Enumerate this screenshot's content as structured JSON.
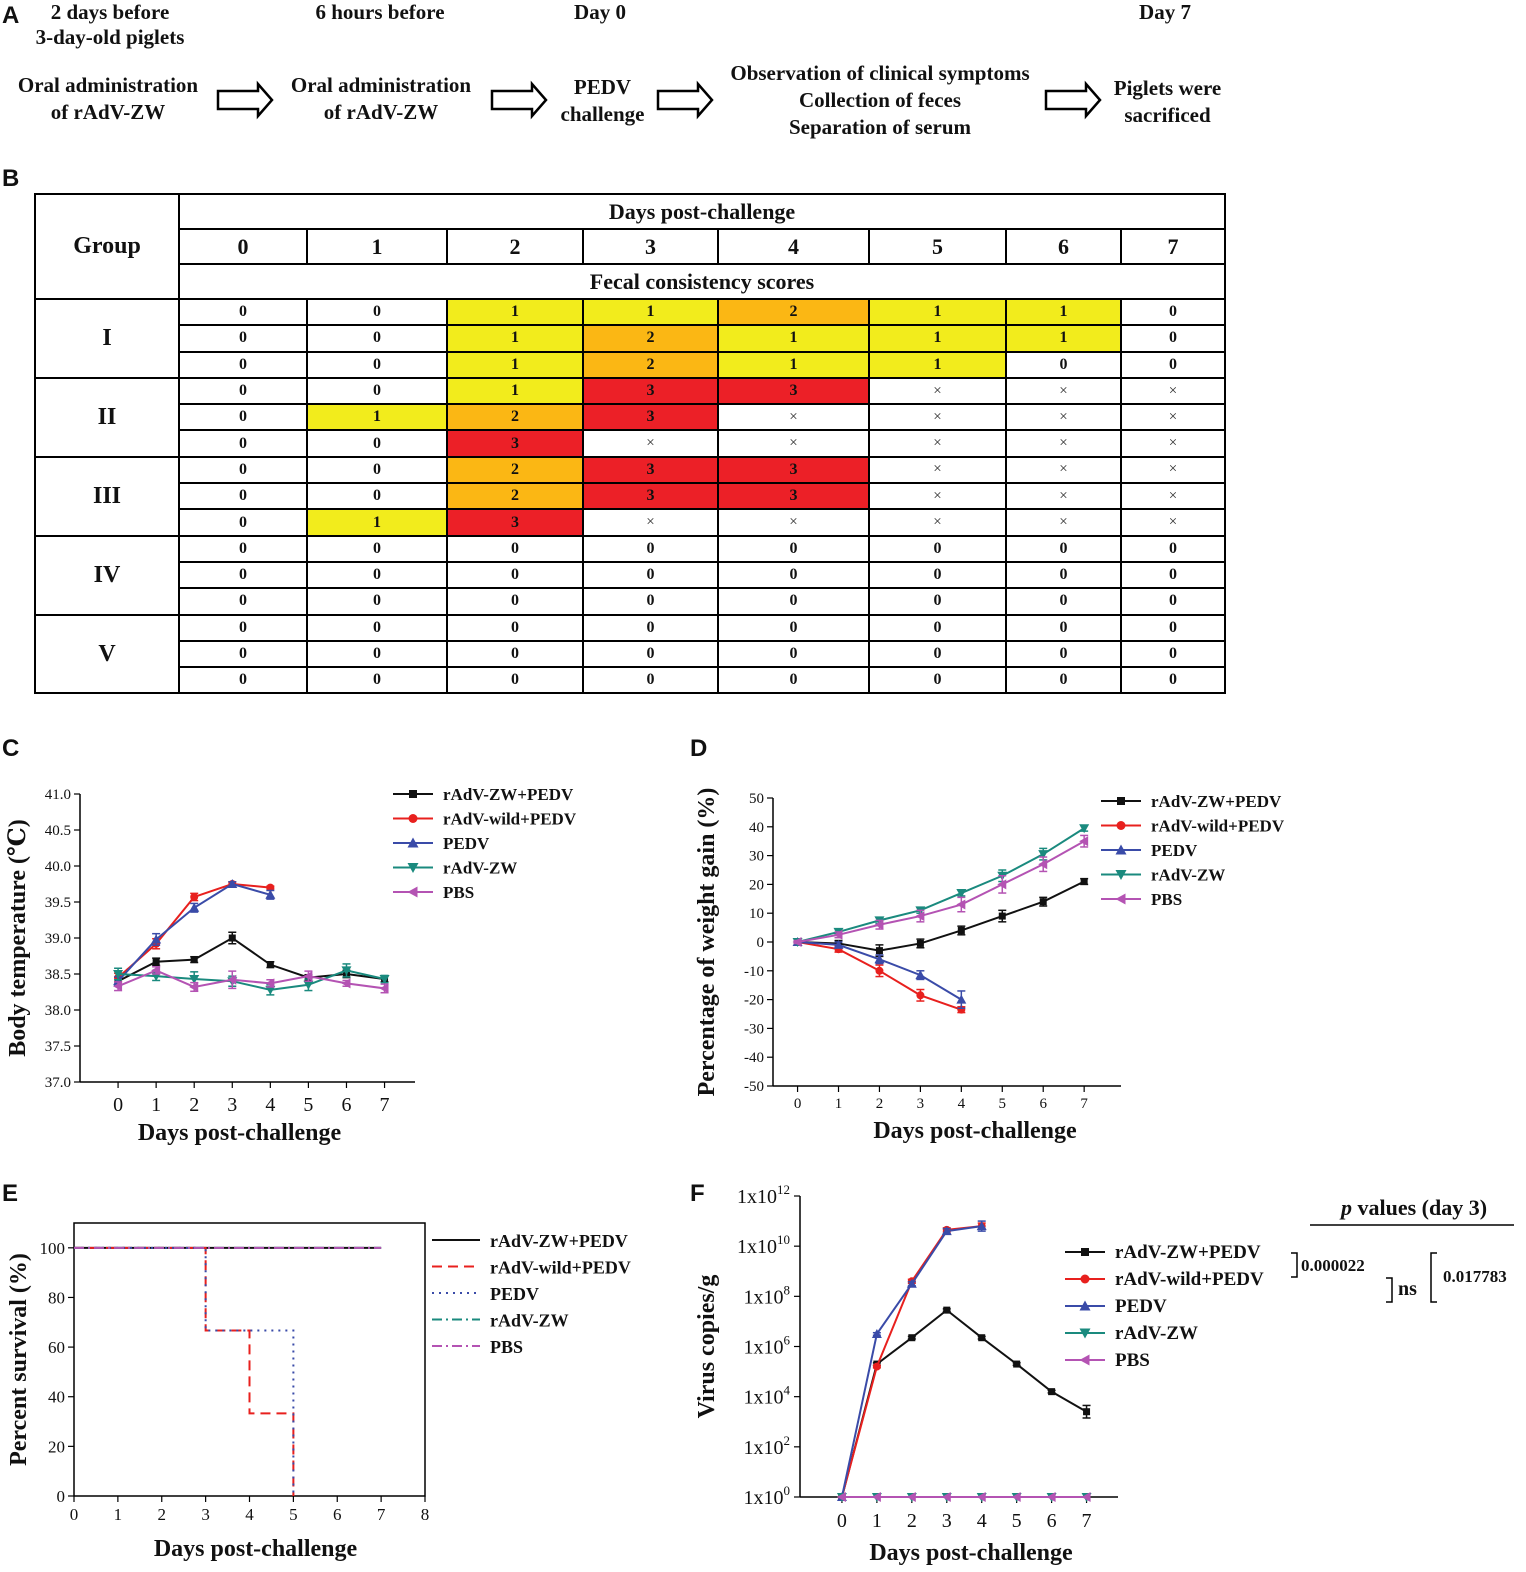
{
  "panel_letters": {
    "a": "A",
    "b": "B",
    "c": "C",
    "d": "D",
    "e": "E",
    "f": "F"
  },
  "timeline": {
    "head_1a": "2 days before",
    "head_1b": "3-day-old piglets",
    "head_2": "6 hours before",
    "head_3": "Day 0",
    "head_4": "Day 7",
    "step_1a": "Oral administration",
    "step_1b": "of rAdV-ZW",
    "step_2a": "Oral administration",
    "step_2b": "of rAdV-ZW",
    "step_3a": "PEDV",
    "step_3b": "challenge",
    "step_4a": "Observation of clinical symptoms",
    "step_4b": "Collection of feces",
    "step_4c": "Separation of serum",
    "step_5a": "Piglets were",
    "step_5b": "sacrificed"
  },
  "table": {
    "group_header": "Group",
    "days_header": "Days post-challenge",
    "days": [
      "0",
      "1",
      "2",
      "3",
      "4",
      "5",
      "6",
      "7"
    ],
    "scores_header": "Fecal consistency scores",
    "groups": [
      {
        "label": "I",
        "rows": [
          [
            "0",
            "0",
            "1",
            "1",
            "2",
            "1",
            "1",
            "0"
          ],
          [
            "0",
            "0",
            "1",
            "2",
            "1",
            "1",
            "1",
            "0"
          ],
          [
            "0",
            "0",
            "1",
            "2",
            "1",
            "1",
            "0",
            "0"
          ]
        ]
      },
      {
        "label": "II",
        "rows": [
          [
            "0",
            "0",
            "1",
            "3",
            "3",
            "×",
            "×",
            "×"
          ],
          [
            "0",
            "1",
            "2",
            "3",
            "×",
            "×",
            "×",
            "×"
          ],
          [
            "0",
            "0",
            "3",
            "×",
            "×",
            "×",
            "×",
            "×"
          ]
        ]
      },
      {
        "label": "III",
        "rows": [
          [
            "0",
            "0",
            "2",
            "3",
            "3",
            "×",
            "×",
            "×"
          ],
          [
            "0",
            "0",
            "2",
            "3",
            "3",
            "×",
            "×",
            "×"
          ],
          [
            "0",
            "1",
            "3",
            "×",
            "×",
            "×",
            "×",
            "×"
          ]
        ]
      },
      {
        "label": "IV",
        "rows": [
          [
            "0",
            "0",
            "0",
            "0",
            "0",
            "0",
            "0",
            "0"
          ],
          [
            "0",
            "0",
            "0",
            "0",
            "0",
            "0",
            "0",
            "0"
          ],
          [
            "0",
            "0",
            "0",
            "0",
            "0",
            "0",
            "0",
            "0"
          ]
        ]
      },
      {
        "label": "V",
        "rows": [
          [
            "0",
            "0",
            "0",
            "0",
            "0",
            "0",
            "0",
            "0"
          ],
          [
            "0",
            "0",
            "0",
            "0",
            "0",
            "0",
            "0",
            "0"
          ],
          [
            "0",
            "0",
            "0",
            "0",
            "0",
            "0",
            "0",
            "0"
          ]
        ]
      }
    ],
    "score_colors": {
      "0": "#ffffff",
      "1": "#f2ec1c",
      "2": "#fbb714",
      "3": "#ec2027",
      "×": "#ffffff"
    }
  },
  "colors": {
    "rAdV-ZW+PEDV": "#111111",
    "rAdV-wild+PEDV": "#e8201e",
    "PEDV": "#3a4ba8",
    "rAdV-ZW": "#1a8a7e",
    "PBS": "#b453b3"
  },
  "chart_data": [
    {
      "id": "C",
      "type": "line",
      "title": "",
      "xlabel": "Days post-challenge",
      "ylabel": "Body temperature (℃)",
      "xlim": [
        -1,
        7.8
      ],
      "ylim": [
        37.0,
        41.0
      ],
      "xticks": [
        0,
        1,
        2,
        3,
        4,
        5,
        6,
        7
      ],
      "yticks": [
        37.0,
        37.5,
        38.0,
        38.5,
        39.0,
        39.5,
        40.0,
        40.5,
        41.0
      ],
      "ytick_labels": [
        "37.0",
        "37.5",
        "38.0",
        "38.5",
        "39.0",
        "39.5",
        "40.0",
        "40.5",
        "41.0"
      ],
      "series": [
        {
          "name": "rAdV-ZW+PEDV",
          "marker": "square",
          "x": [
            0,
            1,
            2,
            3,
            4,
            5,
            6,
            7
          ],
          "values": [
            38.4,
            38.67,
            38.7,
            39.0,
            38.63,
            38.45,
            38.5,
            38.43
          ],
          "err": [
            0.05,
            0.05,
            0.04,
            0.08,
            0.04,
            0.04,
            0.05,
            0.04
          ]
        },
        {
          "name": "rAdV-wild+PEDV",
          "marker": "circle",
          "x": [
            0,
            1,
            2,
            3,
            4
          ],
          "values": [
            38.45,
            38.92,
            39.57,
            39.75,
            39.7
          ],
          "err": [
            0.06,
            0.07,
            0.05,
            0.03,
            0.02
          ]
        },
        {
          "name": "PEDV",
          "marker": "triangle-up",
          "x": [
            0,
            1,
            2,
            3,
            4
          ],
          "values": [
            38.4,
            38.98,
            39.42,
            39.75,
            39.6
          ],
          "err": [
            0.06,
            0.08,
            0.06,
            0.03,
            0.06
          ]
        },
        {
          "name": "rAdV-ZW",
          "marker": "triangle-down",
          "x": [
            0,
            1,
            2,
            3,
            4,
            5,
            6,
            7
          ],
          "values": [
            38.5,
            38.47,
            38.43,
            38.4,
            38.28,
            38.35,
            38.55,
            38.43
          ],
          "err": [
            0.08,
            0.06,
            0.1,
            0.07,
            0.07,
            0.08,
            0.09,
            0.05
          ]
        },
        {
          "name": "PBS",
          "marker": "triangle-left",
          "x": [
            0,
            1,
            2,
            3,
            4,
            5,
            6,
            7
          ],
          "values": [
            38.33,
            38.55,
            38.32,
            38.42,
            38.37,
            38.47,
            38.37,
            38.3
          ],
          "err": [
            0.06,
            0.05,
            0.06,
            0.12,
            0.05,
            0.07,
            0.04,
            0.06
          ]
        }
      ],
      "legend": [
        "rAdV-ZW+PEDV",
        "rAdV-wild+PEDV",
        "PEDV",
        "rAdV-ZW",
        "PBS"
      ]
    },
    {
      "id": "D",
      "type": "line",
      "title": "",
      "xlabel": "Days post-challenge",
      "ylabel": "Percentage of weight gain (%)",
      "xlim": [
        -0.6,
        7.9
      ],
      "ylim": [
        -50,
        50
      ],
      "xticks": [
        0,
        1,
        2,
        3,
        4,
        5,
        6,
        7
      ],
      "yticks": [
        -50,
        -40,
        -30,
        -20,
        -10,
        0,
        10,
        20,
        30,
        40,
        50
      ],
      "ytick_labels": [
        "-50",
        "-40",
        "-30",
        "-20",
        "-10",
        "0",
        "10",
        "20",
        "30",
        "40",
        "50"
      ],
      "series": [
        {
          "name": "rAdV-ZW+PEDV",
          "marker": "square",
          "x": [
            0,
            1,
            2,
            3,
            4,
            5,
            6,
            7
          ],
          "values": [
            0,
            -0.5,
            -3,
            -0.5,
            4,
            9,
            14,
            21
          ],
          "err": [
            0.5,
            1,
            2,
            1.5,
            1.5,
            2,
            1.5,
            1
          ]
        },
        {
          "name": "rAdV-wild+PEDV",
          "marker": "circle",
          "x": [
            0,
            1,
            2,
            3,
            4
          ],
          "values": [
            0,
            -2.5,
            -10,
            -18.5,
            -23.5
          ],
          "err": [
            0.5,
            1,
            2,
            2,
            1
          ]
        },
        {
          "name": "PEDV",
          "marker": "triangle-up",
          "x": [
            0,
            1,
            2,
            3,
            4
          ],
          "values": [
            0,
            -1,
            -6,
            -11.5,
            -20
          ],
          "err": [
            0.5,
            1,
            1.5,
            1.5,
            3
          ]
        },
        {
          "name": "rAdV-ZW",
          "marker": "triangle-down",
          "x": [
            0,
            1,
            2,
            3,
            4,
            5,
            6,
            7
          ],
          "values": [
            0,
            3.5,
            7.5,
            11,
            17,
            23,
            30.5,
            39.5
          ],
          "err": [
            0.5,
            0.8,
            1,
            1,
            1,
            2,
            2,
            1
          ]
        },
        {
          "name": "PBS",
          "marker": "triangle-left",
          "x": [
            0,
            1,
            2,
            3,
            4,
            5,
            6,
            7
          ],
          "values": [
            0,
            2.5,
            6,
            9,
            13,
            20,
            27,
            35
          ],
          "err": [
            0.5,
            1,
            1.5,
            2,
            2.5,
            3,
            2.5,
            2
          ]
        }
      ],
      "legend": [
        "rAdV-ZW+PEDV",
        "rAdV-wild+PEDV",
        "PEDV",
        "rAdV-ZW",
        "PBS"
      ]
    },
    {
      "id": "E",
      "type": "line",
      "title": "",
      "xlabel": "Days post-challenge",
      "ylabel": "Percent survival (%)",
      "xlim": [
        0,
        8
      ],
      "ylim": [
        0,
        110
      ],
      "xticks": [
        0,
        1,
        2,
        3,
        4,
        5,
        6,
        7,
        8
      ],
      "yticks": [
        0,
        20,
        40,
        60,
        80,
        100
      ],
      "ytick_labels": [
        "0",
        "20",
        "40",
        "60",
        "80",
        "100"
      ],
      "series": [
        {
          "name": "rAdV-ZW+PEDV",
          "style": "solid",
          "x": [
            0,
            7
          ],
          "values": [
            100,
            100
          ]
        },
        {
          "name": "rAdV-wild+PEDV",
          "style": "dashed",
          "x": [
            0,
            3,
            3,
            4,
            4,
            5,
            5
          ],
          "values": [
            100,
            100,
            66.7,
            66.7,
            33.3,
            33.3,
            0
          ]
        },
        {
          "name": "PEDV",
          "style": "dotted",
          "x": [
            0,
            3,
            3,
            5,
            5
          ],
          "values": [
            100,
            100,
            66.7,
            66.7,
            0
          ]
        },
        {
          "name": "rAdV-ZW",
          "style": "dashdot",
          "x": [
            0,
            7
          ],
          "values": [
            100,
            100
          ]
        },
        {
          "name": "PBS",
          "style": "dashdot",
          "x": [
            0,
            7
          ],
          "values": [
            100,
            100
          ]
        }
      ],
      "legend": [
        "rAdV-ZW+PEDV",
        "rAdV-wild+PEDV",
        "PEDV",
        "rAdV-ZW",
        "PBS"
      ]
    },
    {
      "id": "F",
      "type": "line",
      "title": "",
      "xlabel": "Days post-challenge",
      "ylabel": "Virus copies/g",
      "yscale": "log10",
      "xlim": [
        -1.2,
        7.9
      ],
      "ylim_exp": [
        0,
        12
      ],
      "xticks": [
        0,
        1,
        2,
        3,
        4,
        5,
        6,
        7
      ],
      "ytick_exponents": [
        0,
        2,
        4,
        6,
        8,
        10,
        12
      ],
      "ytick_base": "1x10",
      "series": [
        {
          "name": "rAdV-ZW+PEDV",
          "marker": "square",
          "x": [
            0,
            1,
            2,
            3,
            4,
            5,
            6,
            7
          ],
          "log10": [
            0,
            5.3,
            6.35,
            7.45,
            6.35,
            5.3,
            4.2,
            3.4
          ],
          "err": [
            0,
            0.05,
            0.05,
            0.05,
            0.05,
            0.05,
            0.05,
            0.25
          ]
        },
        {
          "name": "rAdV-wild+PEDV",
          "marker": "circle",
          "x": [
            0,
            1,
            2,
            3,
            4
          ],
          "log10": [
            0,
            5.2,
            8.6,
            10.65,
            10.8
          ],
          "err": [
            0,
            0.05,
            0.08,
            0.08,
            0.12
          ]
        },
        {
          "name": "PEDV",
          "marker": "triangle-up",
          "x": [
            0,
            1,
            2,
            3,
            4
          ],
          "log10": [
            0,
            6.5,
            8.5,
            10.6,
            10.8
          ],
          "err": [
            0,
            0.05,
            0.08,
            0.1,
            0.2
          ]
        },
        {
          "name": "rAdV-ZW",
          "marker": "triangle-down",
          "x": [
            0,
            1,
            2,
            3,
            4,
            5,
            6,
            7
          ],
          "log10": [
            0,
            0,
            0,
            0,
            0,
            0,
            0,
            0
          ],
          "err": [
            0,
            0,
            0,
            0,
            0,
            0,
            0,
            0
          ]
        },
        {
          "name": "PBS",
          "marker": "triangle-left",
          "x": [
            0,
            1,
            2,
            3,
            4,
            5,
            6,
            7
          ],
          "log10": [
            0,
            0,
            0,
            0,
            0,
            0,
            0,
            0
          ],
          "err": [
            0,
            0,
            0,
            0,
            0,
            0,
            0,
            0
          ]
        }
      ],
      "legend": [
        "rAdV-ZW+PEDV",
        "rAdV-wild+PEDV",
        "PEDV",
        "rAdV-ZW",
        "PBS"
      ],
      "pvalues": {
        "title_p": "p",
        "title_rest": " values (day 3)",
        "v1": "0.000022",
        "v2": "ns",
        "v3": "0.017783"
      }
    }
  ]
}
